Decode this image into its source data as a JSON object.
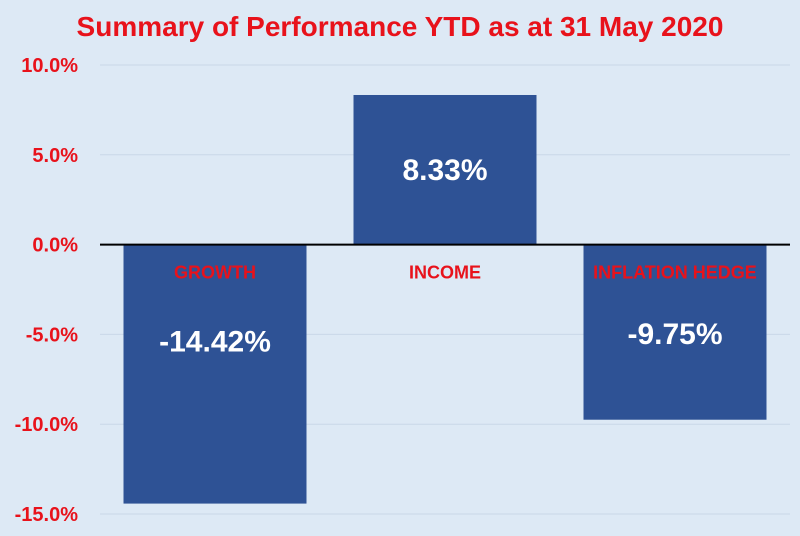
{
  "chart_data": {
    "type": "bar",
    "title": "Summary of Performance YTD as at 31 May 2020",
    "categories": [
      "GROWTH",
      "INCOME",
      "INFLATION HEDGE"
    ],
    "values": [
      -14.42,
      8.33,
      -9.75
    ],
    "data_labels": [
      "-14.42%",
      "8.33%",
      "-9.75%"
    ],
    "ylim": [
      -15,
      10
    ],
    "yticks": [
      10,
      5,
      0,
      -5,
      -10,
      -15
    ],
    "ytick_labels": [
      "10.0%",
      "5.0%",
      "0.0%",
      "-5.0%",
      "-10.0%",
      "-15.0%"
    ],
    "grid": true,
    "legend": "none",
    "colors": {
      "bar": "#2e5295",
      "text_accent": "#e8121b",
      "data_label": "#ffffff",
      "background": "#dde9f5"
    }
  }
}
